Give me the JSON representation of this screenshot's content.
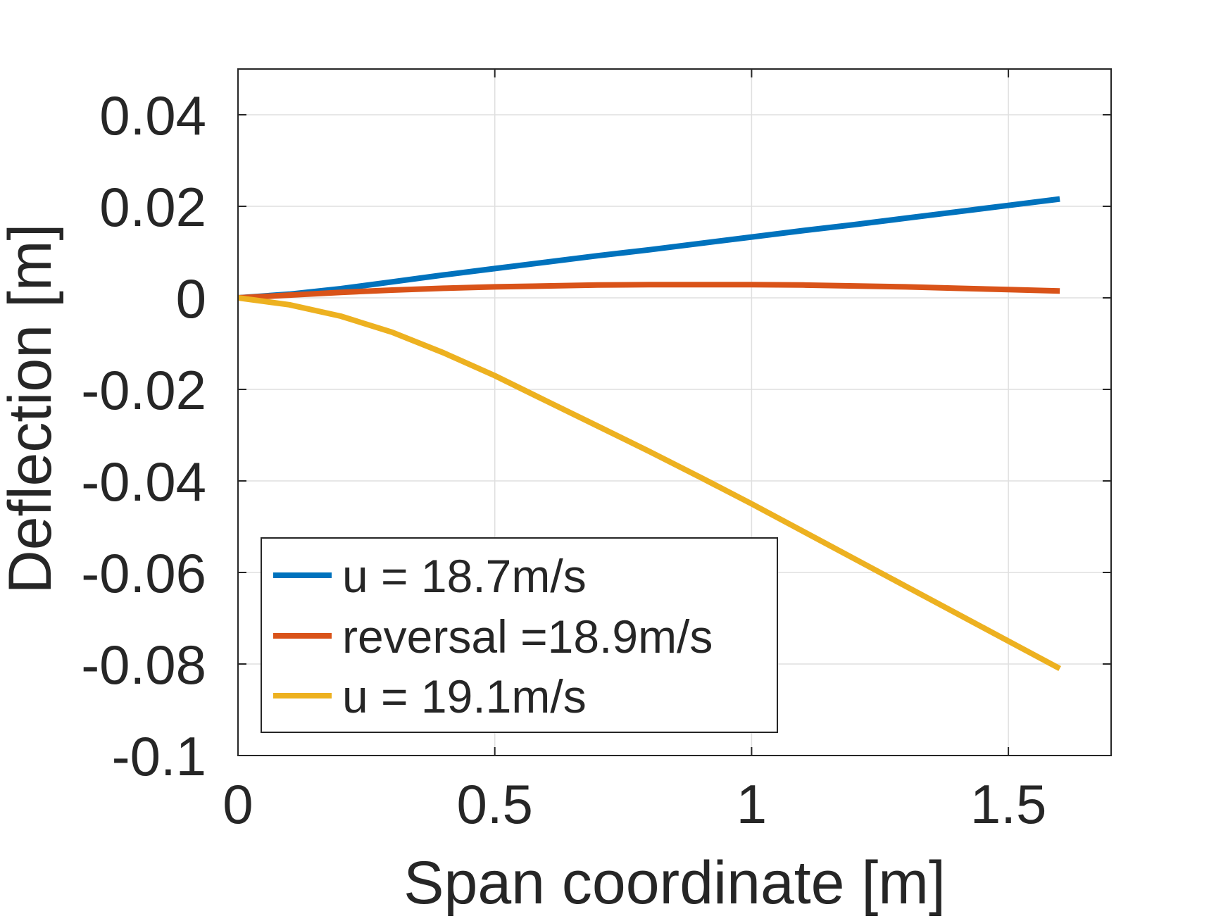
{
  "chart_data": {
    "type": "line",
    "title": "",
    "xlabel": "Span coordinate [m]",
    "ylabel": "Deflection [m]",
    "xlim": [
      0,
      1.7
    ],
    "ylim": [
      -0.1,
      0.05
    ],
    "xticks": [
      0,
      0.5,
      1,
      1.5
    ],
    "xtick_labels": [
      "0",
      "0.5",
      "1",
      "1.5"
    ],
    "yticks": [
      -0.1,
      -0.08,
      -0.06,
      -0.04,
      -0.02,
      0,
      0.02,
      0.04
    ],
    "ytick_labels": [
      "-0.1",
      "-0.08",
      "-0.06",
      "-0.04",
      "-0.02",
      "0",
      "0.02",
      "0.04"
    ],
    "grid": true,
    "legend_position": "bottom-left",
    "x": [
      0,
      0.1,
      0.2,
      0.3,
      0.4,
      0.5,
      0.6,
      0.7,
      0.8,
      0.9,
      1.0,
      1.1,
      1.2,
      1.3,
      1.4,
      1.5,
      1.6
    ],
    "series": [
      {
        "name": "u = 18.7m/s",
        "color": "#0072BD",
        "values": [
          0,
          0.0008,
          0.002,
          0.0035,
          0.005,
          0.0064,
          0.0078,
          0.0092,
          0.0105,
          0.0119,
          0.0133,
          0.0147,
          0.016,
          0.0174,
          0.0188,
          0.0202,
          0.0216
        ]
      },
      {
        "name": "reversal =18.9m/s",
        "color": "#D95319",
        "values": [
          0,
          0.0006,
          0.0012,
          0.0017,
          0.0021,
          0.0024,
          0.0026,
          0.0028,
          0.0029,
          0.0029,
          0.0029,
          0.0028,
          0.0026,
          0.0024,
          0.0021,
          0.0018,
          0.0015
        ]
      },
      {
        "name": "u = 19.1m/s",
        "color": "#EDB120",
        "values": [
          0,
          -0.0015,
          -0.004,
          -0.0075,
          -0.012,
          -0.017,
          -0.0225,
          -0.028,
          -0.0335,
          -0.0392,
          -0.045,
          -0.051,
          -0.057,
          -0.063,
          -0.069,
          -0.075,
          -0.081
        ]
      }
    ]
  }
}
